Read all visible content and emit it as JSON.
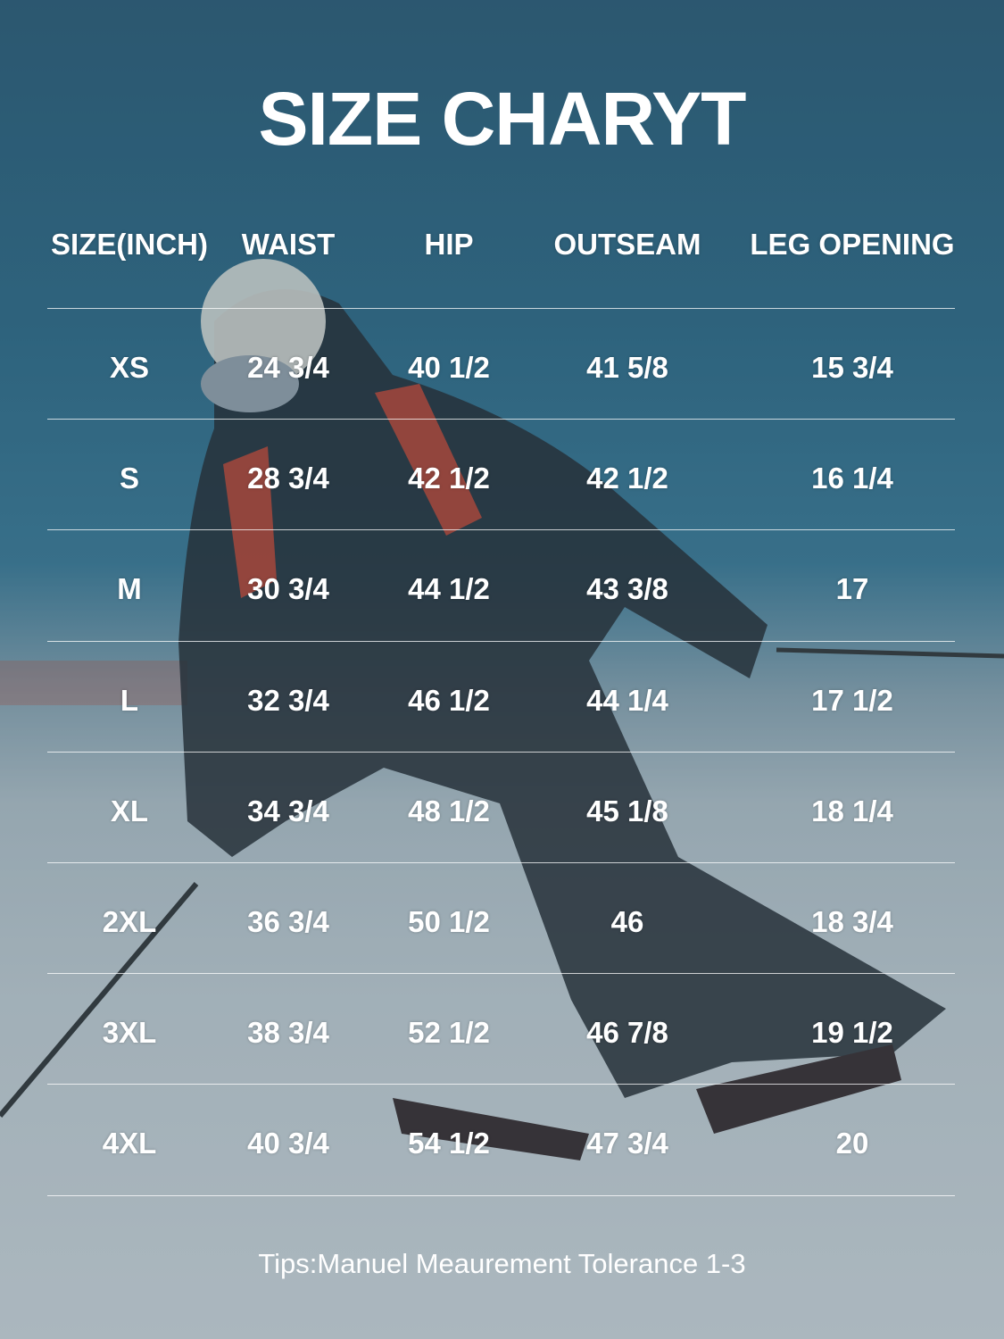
{
  "title": "SIZE CHARYT",
  "headers": [
    "SIZE(INCH)",
    "WAIST",
    "HIP",
    "OUTSEAM",
    "LEG OPENING"
  ],
  "rows": [
    [
      "XS",
      "24 3/4",
      "40 1/2",
      "41 5/8",
      "15 3/4"
    ],
    [
      "S",
      "28 3/4",
      "42 1/2",
      "42 1/2",
      "16 1/4"
    ],
    [
      "M",
      "30 3/4",
      "44 1/2",
      "43 3/8",
      "17"
    ],
    [
      "L",
      "32 3/4",
      "46 1/2",
      "44 1/4",
      "17 1/2"
    ],
    [
      "XL",
      "34 3/4",
      "48 1/2",
      "45 1/8",
      "18 1/4"
    ],
    [
      "2XL",
      "36 3/4",
      "50 1/2",
      "46",
      "18 3/4"
    ],
    [
      "3XL",
      "38 3/4",
      "52 1/2",
      "46 7/8",
      "19 1/2"
    ],
    [
      "4XL",
      "40 3/4",
      "54 1/2",
      "47 3/4",
      "20"
    ]
  ],
  "tips": "Tips:Manuel Meaurement Tolerance 1-3"
}
